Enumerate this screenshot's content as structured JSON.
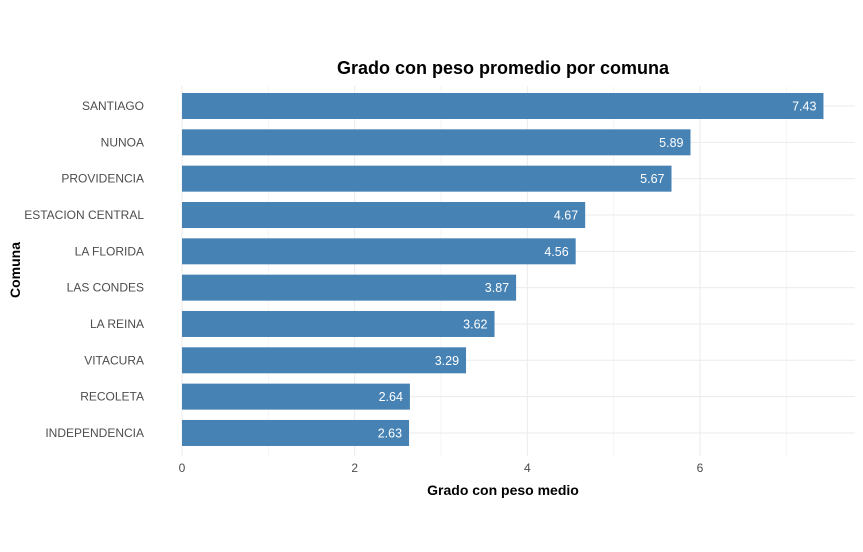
{
  "chart_data": {
    "type": "bar",
    "orientation": "horizontal",
    "title": "Grado con peso promedio por comuna",
    "xlabel": "Grado con peso medio",
    "ylabel": "Comuna",
    "categories": [
      "SANTIAGO",
      "NUNOA",
      "PROVIDENCIA",
      "ESTACION CENTRAL",
      "LA FLORIDA",
      "LAS CONDES",
      "LA REINA",
      "VITACURA",
      "RECOLETA",
      "INDEPENDENCIA"
    ],
    "values": [
      7.43,
      5.89,
      5.67,
      4.67,
      4.56,
      3.87,
      3.62,
      3.29,
      2.64,
      2.63
    ],
    "data_labels": [
      "7.43",
      "5.89",
      "5.67",
      "4.67",
      "4.56",
      "3.87",
      "3.62",
      "3.29",
      "2.64",
      "2.63"
    ],
    "xlim": [
      0,
      7.8
    ],
    "xticks": [
      0,
      2,
      4,
      6
    ],
    "xtick_labels": [
      "0",
      "2",
      "4",
      "6"
    ],
    "grid": true,
    "bar_color": "#4682b4",
    "label_color": "#ffffff"
  }
}
